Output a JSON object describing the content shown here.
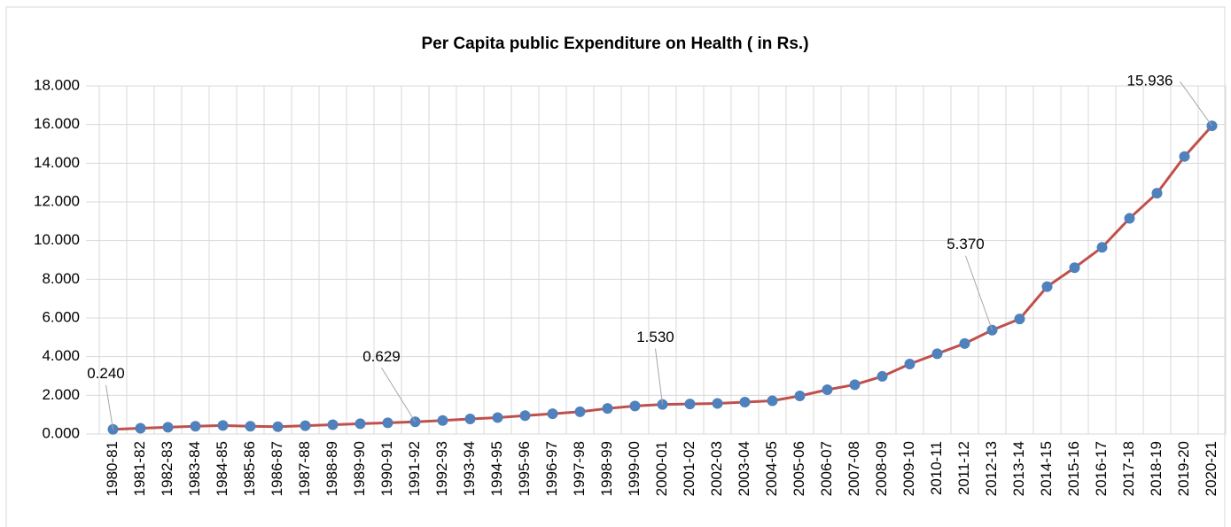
{
  "chart_data": {
    "type": "line",
    "title": "Per Capita public Expenditure on Health ( in Rs.)",
    "categories": [
      "1980-81",
      "1981-82",
      "1982-83",
      "1983-84",
      "1984-85",
      "1985-86",
      "1986-87",
      "1987-88",
      "1988-89",
      "1989-90",
      "1990-91",
      "1991-92",
      "1992-93",
      "1993-94",
      "1994-95",
      "1995-96",
      "1996-97",
      "1997-98",
      "1998-99",
      "1999-00",
      "2000-01",
      "2001-02",
      "2002-03",
      "2003-04",
      "2004-05",
      "2005-06",
      "2006-07",
      "2007-08",
      "2008-09",
      "2009-10",
      "2010-11",
      "2011-12",
      "2012-13",
      "2013-14",
      "2014-15",
      "2015-16",
      "2016-17",
      "2017-18",
      "2018-19",
      "2019-20",
      "2020-21"
    ],
    "series": [
      {
        "color": "#c0504d",
        "marker_color": "#4f81bd",
        "values": [
          0.24,
          0.3,
          0.35,
          0.4,
          0.44,
          0.4,
          0.38,
          0.43,
          0.48,
          0.53,
          0.58,
          0.629,
          0.7,
          0.78,
          0.85,
          0.95,
          1.05,
          1.15,
          1.32,
          1.45,
          1.53,
          1.55,
          1.58,
          1.65,
          1.72,
          1.97,
          2.29,
          2.55,
          2.98,
          3.62,
          4.15,
          4.68,
          5.37,
          5.95,
          7.62,
          8.6,
          9.65,
          11.15,
          12.45,
          14.35,
          15.936
        ],
        "value_labels": [
          "0.240",
          null,
          null,
          null,
          null,
          null,
          null,
          null,
          null,
          null,
          null,
          "0.629",
          null,
          null,
          null,
          null,
          null,
          null,
          null,
          null,
          "1.530",
          null,
          null,
          null,
          null,
          null,
          null,
          null,
          null,
          null,
          null,
          null,
          "5.370",
          null,
          null,
          null,
          null,
          null,
          null,
          null,
          "15.936"
        ]
      }
    ],
    "ylim": [
      0,
      18
    ],
    "yticks": [
      {
        "value": 0,
        "label": "0.000"
      },
      {
        "value": 2,
        "label": "2.000"
      },
      {
        "value": 4,
        "label": "4.000"
      },
      {
        "value": 6,
        "label": "6.000"
      },
      {
        "value": 8,
        "label": "8.000"
      },
      {
        "value": 10,
        "label": "10.000"
      },
      {
        "value": 12,
        "label": "12.000"
      },
      {
        "value": 14,
        "label": "14.000"
      },
      {
        "value": 16,
        "label": "16.000"
      },
      {
        "value": 18,
        "label": "18.000"
      }
    ],
    "grid": true
  }
}
